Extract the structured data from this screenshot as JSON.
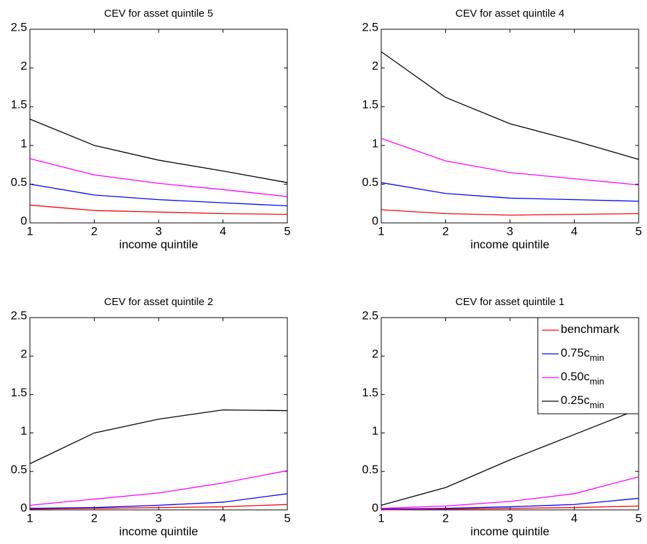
{
  "chart_data": [
    {
      "type": "line",
      "title": "CEV for asset quintile 5",
      "x_label": "income quintile",
      "x": [
        1,
        2,
        3,
        4,
        5
      ],
      "xlim": [
        1,
        5
      ],
      "xticks": [
        1,
        2,
        3,
        4,
        5
      ],
      "ylim": [
        0,
        2.5
      ],
      "yticks": [
        0,
        0.5,
        1,
        1.5,
        2,
        2.5
      ],
      "series": [
        {
          "color": "#ff0000",
          "values": [
            0.23,
            0.16,
            0.14,
            0.12,
            0.11
          ]
        },
        {
          "color": "#0000ff",
          "values": [
            0.5,
            0.36,
            0.3,
            0.26,
            0.22
          ]
        },
        {
          "color": "#ff00ff",
          "values": [
            0.83,
            0.62,
            0.51,
            0.43,
            0.34
          ]
        },
        {
          "color": "#000000",
          "values": [
            1.34,
            1.0,
            0.81,
            0.67,
            0.52
          ]
        }
      ]
    },
    {
      "type": "line",
      "title": "CEV for asset quintile 4",
      "x_label": "income quintile",
      "x": [
        1,
        2,
        3,
        4,
        5
      ],
      "xlim": [
        1,
        5
      ],
      "xticks": [
        1,
        2,
        3,
        4,
        5
      ],
      "ylim": [
        0,
        2.5
      ],
      "yticks": [
        0,
        0.5,
        1,
        1.5,
        2,
        2.5
      ],
      "series": [
        {
          "color": "#ff0000",
          "values": [
            0.17,
            0.12,
            0.1,
            0.11,
            0.12
          ]
        },
        {
          "color": "#0000ff",
          "values": [
            0.52,
            0.38,
            0.32,
            0.3,
            0.28
          ]
        },
        {
          "color": "#ff00ff",
          "values": [
            1.09,
            0.8,
            0.65,
            0.57,
            0.49
          ]
        },
        {
          "color": "#000000",
          "values": [
            2.21,
            1.62,
            1.28,
            1.06,
            0.82
          ]
        }
      ]
    },
    {
      "type": "line",
      "title": "CEV for asset quintile 2",
      "x_label": "income quintile",
      "x": [
        1,
        2,
        3,
        4,
        5
      ],
      "xlim": [
        1,
        5
      ],
      "xticks": [
        1,
        2,
        3,
        4,
        5
      ],
      "ylim": [
        0,
        2.5
      ],
      "yticks": [
        0,
        0.5,
        1,
        1.5,
        2,
        2.5
      ],
      "series": [
        {
          "color": "#ff0000",
          "values": [
            0.01,
            0.02,
            0.03,
            0.04,
            0.07
          ]
        },
        {
          "color": "#0000ff",
          "values": [
            0.02,
            0.03,
            0.06,
            0.1,
            0.21
          ]
        },
        {
          "color": "#ff00ff",
          "values": [
            0.06,
            0.14,
            0.22,
            0.35,
            0.51
          ]
        },
        {
          "color": "#000000",
          "values": [
            0.6,
            1.0,
            1.18,
            1.3,
            1.29
          ]
        }
      ]
    },
    {
      "type": "line",
      "title": "CEV for asset quintile 1",
      "x_label": "income quintile",
      "x": [
        1,
        2,
        3,
        4,
        5
      ],
      "xlim": [
        1,
        5
      ],
      "xticks": [
        1,
        2,
        3,
        4,
        5
      ],
      "ylim": [
        0,
        2.5
      ],
      "yticks": [
        0,
        0.5,
        1,
        1.5,
        2,
        2.5
      ],
      "legend": "upper right",
      "series": [
        {
          "name": "benchmark",
          "color": "#ff0000",
          "values": [
            0.0,
            0.01,
            0.02,
            0.03,
            0.05
          ]
        },
        {
          "name": "0.75c",
          "name_sub": "min",
          "color": "#0000ff",
          "values": [
            0.01,
            0.02,
            0.04,
            0.07,
            0.15
          ]
        },
        {
          "name": "0.50c",
          "name_sub": "min",
          "color": "#ff00ff",
          "values": [
            0.02,
            0.05,
            0.11,
            0.21,
            0.43
          ]
        },
        {
          "name": "0.25c",
          "name_sub": "min",
          "color": "#000000",
          "values": [
            0.06,
            0.29,
            0.65,
            0.98,
            1.31
          ]
        }
      ]
    }
  ]
}
